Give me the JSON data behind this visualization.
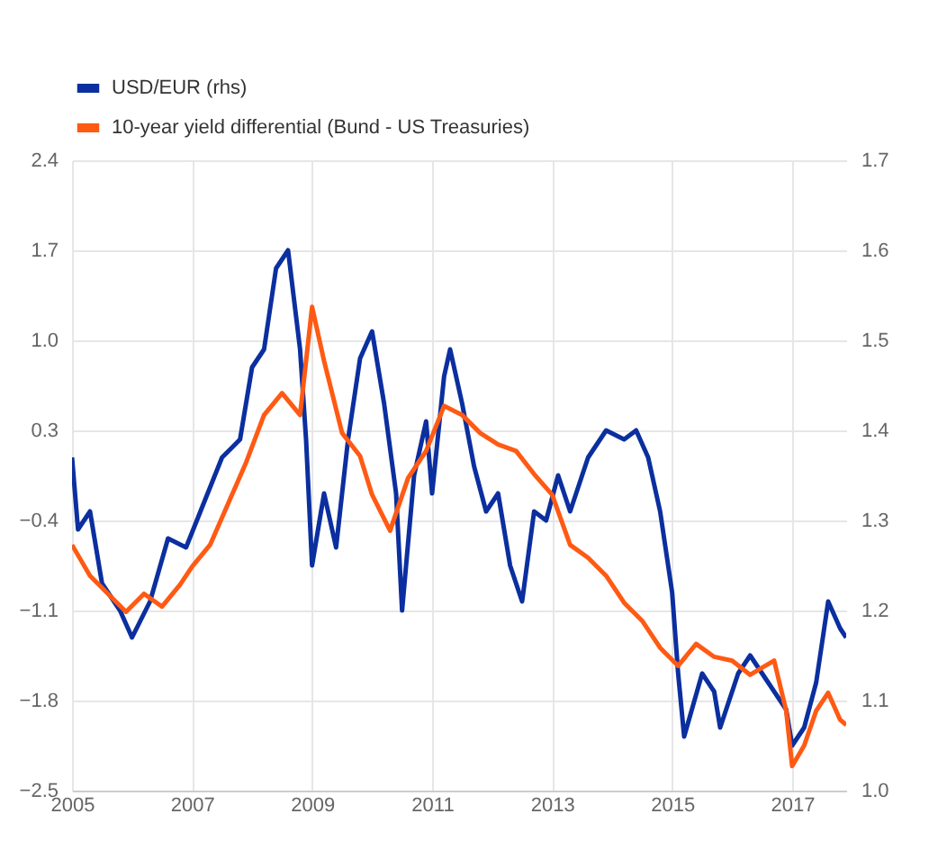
{
  "chart_data": {
    "type": "line",
    "xlim": [
      2005,
      2017.9
    ],
    "xticks": [
      2005,
      2007,
      2009,
      2011,
      2013,
      2015,
      2017
    ],
    "ylim": [
      -2.5,
      2.4
    ],
    "yticks": [
      -2.5,
      -1.8,
      -1.1,
      -0.4,
      0.3,
      {
        "value": 1.0,
        "label": "1.0"
      },
      1.7,
      2.4
    ],
    "y2lim": [
      1.0,
      1.7
    ],
    "y2ticks": [
      {
        "value": 1.0,
        "label": "1.0"
      },
      1.1,
      1.2,
      1.3,
      1.4,
      1.5,
      1.6,
      1.7
    ],
    "grid": true,
    "legend": "top left",
    "series": [
      {
        "name": "USD/EUR (rhs)",
        "color": "#0b2f9f",
        "axis": "y2",
        "x": [
          2005.0,
          2005.1,
          2005.3,
          2005.5,
          2005.8,
          2006.0,
          2006.3,
          2006.6,
          2006.9,
          2007.2,
          2007.5,
          2007.8,
          2008.0,
          2008.2,
          2008.4,
          2008.6,
          2008.8,
          2008.9,
          2009.0,
          2009.2,
          2009.4,
          2009.6,
          2009.8,
          2010.0,
          2010.2,
          2010.4,
          2010.5,
          2010.7,
          2010.9,
          2011.0,
          2011.2,
          2011.3,
          2011.5,
          2011.7,
          2011.9,
          2012.1,
          2012.3,
          2012.5,
          2012.7,
          2012.9,
          2013.1,
          2013.3,
          2013.6,
          2013.9,
          2014.2,
          2014.4,
          2014.6,
          2014.8,
          2015.0,
          2015.1,
          2015.2,
          2015.5,
          2015.7,
          2015.8,
          2016.1,
          2016.3,
          2016.6,
          2016.9,
          2017.0,
          2017.2,
          2017.4,
          2017.6,
          2017.8,
          2017.9
        ],
        "values": [
          1.37,
          1.29,
          1.31,
          1.23,
          1.2,
          1.17,
          1.21,
          1.28,
          1.27,
          1.32,
          1.37,
          1.39,
          1.47,
          1.49,
          1.58,
          1.6,
          1.49,
          1.39,
          1.25,
          1.33,
          1.27,
          1.39,
          1.48,
          1.51,
          1.43,
          1.33,
          1.2,
          1.35,
          1.41,
          1.33,
          1.46,
          1.49,
          1.43,
          1.36,
          1.31,
          1.33,
          1.25,
          1.21,
          1.31,
          1.3,
          1.35,
          1.31,
          1.37,
          1.4,
          1.39,
          1.4,
          1.37,
          1.31,
          1.22,
          1.13,
          1.06,
          1.13,
          1.11,
          1.07,
          1.13,
          1.15,
          1.12,
          1.09,
          1.05,
          1.07,
          1.12,
          1.21,
          1.18,
          1.17
        ]
      },
      {
        "name": "10-year yield differential (Bund - US Treasuries)",
        "color": "#ff5a14",
        "x": [
          2005.0,
          2005.3,
          2005.6,
          2005.9,
          2006.2,
          2006.5,
          2006.8,
          2007.0,
          2007.3,
          2007.6,
          2007.9,
          2008.2,
          2008.5,
          2008.8,
          2009.0,
          2009.2,
          2009.5,
          2009.8,
          2010.0,
          2010.3,
          2010.6,
          2010.9,
          2011.2,
          2011.5,
          2011.8,
          2012.1,
          2012.4,
          2012.7,
          2013.0,
          2013.3,
          2013.6,
          2013.9,
          2014.2,
          2014.5,
          2014.8,
          2015.1,
          2015.4,
          2015.7,
          2016.0,
          2016.3,
          2016.7,
          2016.9,
          2017.0,
          2017.2,
          2017.4,
          2017.6,
          2017.8,
          2017.9
        ],
        "values": [
          -0.59,
          -0.83,
          -0.97,
          -1.11,
          -0.97,
          -1.07,
          -0.9,
          -0.76,
          -0.59,
          -0.27,
          0.05,
          0.42,
          0.59,
          0.42,
          1.26,
          0.84,
          0.28,
          0.1,
          -0.2,
          -0.48,
          -0.07,
          0.14,
          0.49,
          0.42,
          0.28,
          0.19,
          0.14,
          -0.04,
          -0.2,
          -0.59,
          -0.69,
          -0.83,
          -1.04,
          -1.18,
          -1.39,
          -1.53,
          -1.36,
          -1.46,
          -1.49,
          -1.6,
          -1.49,
          -1.88,
          -2.31,
          -2.15,
          -1.88,
          -1.74,
          -1.95,
          -1.99
        ]
      }
    ]
  }
}
